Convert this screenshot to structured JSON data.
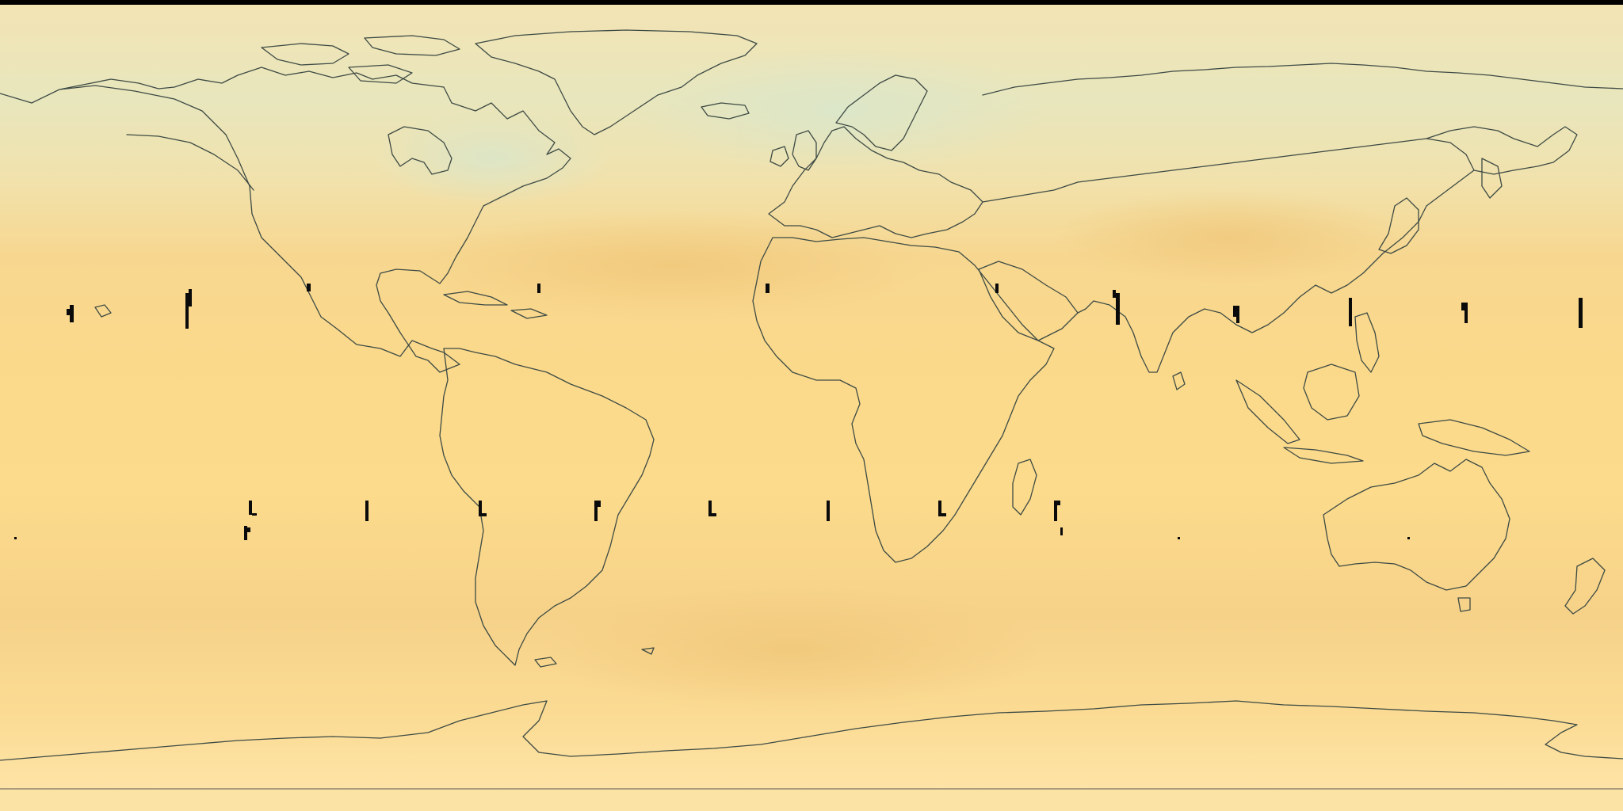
{
  "map": {
    "projection": "equirectangular",
    "colors": {
      "background_frame": "#000000",
      "field_base": "#fbd98a",
      "field_cool": "#e6e7bf",
      "field_warm": "#f2cd80",
      "coastline": "#3d4a44",
      "glitch_marks": "#0a0a0a"
    },
    "coastlines": "world",
    "legend": "none",
    "labels": "none",
    "glitch_marks": "present"
  }
}
